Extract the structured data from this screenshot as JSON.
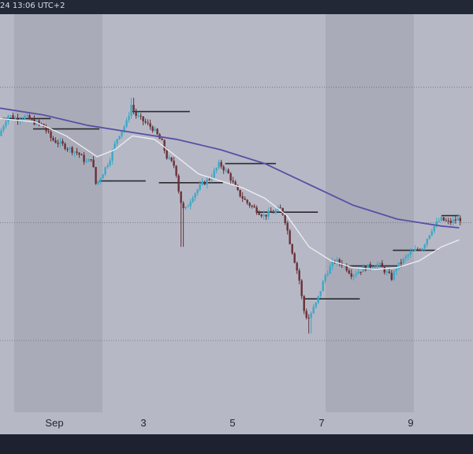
{
  "header": {
    "timestamp_text": "24 13:06 UTC+2"
  },
  "colors": {
    "background": "#b6b9c5",
    "weekend_band": "#a9acb8",
    "bull_candle": "#3ea8c8",
    "bear_candle": "#6a3038",
    "slow_ma": "#5a4fa6",
    "fast_ma": "#eeeef3",
    "level_line": "#2a2a2e",
    "dotted_line": "#666a78"
  },
  "chart_data": {
    "type": "candlestick",
    "x_tick_labels": [
      "Sep",
      "3",
      "5",
      "7",
      "9"
    ],
    "y_range": [
      0,
      100
    ],
    "dotted_levels": [
      88,
      49,
      15
    ],
    "weekend_bands": [
      {
        "from": "Aug 31",
        "to": "Sep 1"
      },
      {
        "from": "Sep 7",
        "to": "Sep 8"
      }
    ],
    "price_path": [
      [
        0.0,
        74
      ],
      [
        0.2,
        80
      ],
      [
        0.4,
        79
      ],
      [
        0.6,
        79.5
      ],
      [
        0.8,
        78
      ],
      [
        1.0,
        77
      ],
      [
        1.2,
        73
      ],
      [
        1.5,
        71
      ],
      [
        1.8,
        69
      ],
      [
        2.0,
        66
      ],
      [
        2.1,
        68
      ],
      [
        2.2,
        60
      ],
      [
        2.3,
        62
      ],
      [
        2.5,
        67
      ],
      [
        2.7,
        74
      ],
      [
        2.9,
        78
      ],
      [
        3.0,
        83
      ],
      [
        3.1,
        80
      ],
      [
        3.3,
        78
      ],
      [
        3.5,
        76
      ],
      [
        3.7,
        72
      ],
      [
        3.8,
        68
      ],
      [
        4.0,
        65
      ],
      [
        4.1,
        56
      ],
      [
        4.2,
        52
      ],
      [
        4.4,
        57
      ],
      [
        4.6,
        60
      ],
      [
        4.8,
        62
      ],
      [
        5.0,
        66
      ],
      [
        5.2,
        63
      ],
      [
        5.4,
        58
      ],
      [
        5.6,
        55
      ],
      [
        5.8,
        53
      ],
      [
        6.0,
        51
      ],
      [
        6.2,
        52
      ],
      [
        6.4,
        53
      ],
      [
        6.5,
        49
      ],
      [
        6.6,
        43
      ],
      [
        6.8,
        33
      ],
      [
        6.9,
        24
      ],
      [
        7.0,
        21
      ],
      [
        7.2,
        26
      ],
      [
        7.4,
        34
      ],
      [
        7.6,
        38
      ],
      [
        7.8,
        37
      ],
      [
        8.0,
        34
      ],
      [
        8.3,
        36
      ],
      [
        8.6,
        37
      ],
      [
        8.9,
        33
      ],
      [
        9.0,
        36
      ],
      [
        9.3,
        40
      ],
      [
        9.6,
        42
      ],
      [
        9.8,
        47
      ],
      [
        10.0,
        50
      ],
      [
        10.2,
        49
      ],
      [
        10.4,
        50
      ]
    ],
    "wick_extremes": [
      {
        "x": 4.1,
        "low": 42
      },
      {
        "x": 7.0,
        "low": 17
      },
      {
        "x": 3.0,
        "high": 85
      }
    ],
    "slow_ma": [
      [
        0.0,
        82
      ],
      [
        1.0,
        80
      ],
      [
        2.0,
        77
      ],
      [
        3.0,
        75
      ],
      [
        4.0,
        73
      ],
      [
        5.0,
        70
      ],
      [
        6.0,
        66
      ],
      [
        7.0,
        60
      ],
      [
        8.0,
        54
      ],
      [
        9.0,
        50
      ],
      [
        10.0,
        48
      ],
      [
        10.4,
        47.5
      ]
    ],
    "fast_ma": [
      [
        0.0,
        79
      ],
      [
        0.8,
        78
      ],
      [
        1.5,
        74
      ],
      [
        2.2,
        68
      ],
      [
        2.6,
        70
      ],
      [
        3.0,
        74
      ],
      [
        3.5,
        73
      ],
      [
        4.0,
        68
      ],
      [
        4.5,
        63
      ],
      [
        5.0,
        61
      ],
      [
        5.5,
        59
      ],
      [
        6.0,
        56
      ],
      [
        6.5,
        51
      ],
      [
        7.0,
        42
      ],
      [
        7.5,
        38
      ],
      [
        8.0,
        36
      ],
      [
        8.5,
        35.5
      ],
      [
        9.0,
        36
      ],
      [
        9.5,
        38
      ],
      [
        10.0,
        42
      ],
      [
        10.4,
        44
      ]
    ],
    "level_segments": [
      {
        "x0": 0.05,
        "x1": 1.15,
        "y": 79
      },
      {
        "x0": 0.75,
        "x1": 2.25,
        "y": 76
      },
      {
        "x0": 2.25,
        "x1": 3.3,
        "y": 61
      },
      {
        "x0": 3.0,
        "x1": 4.3,
        "y": 81
      },
      {
        "x0": 3.6,
        "x1": 5.05,
        "y": 60.5
      },
      {
        "x0": 5.1,
        "x1": 6.25,
        "y": 66
      },
      {
        "x0": 5.8,
        "x1": 7.2,
        "y": 52
      },
      {
        "x0": 6.9,
        "x1": 8.15,
        "y": 27
      },
      {
        "x0": 7.9,
        "x1": 9.0,
        "y": 36.5
      },
      {
        "x0": 8.9,
        "x1": 9.9,
        "y": 41
      },
      {
        "x0": 10.0,
        "x1": 10.4,
        "y": 51
      }
    ]
  }
}
